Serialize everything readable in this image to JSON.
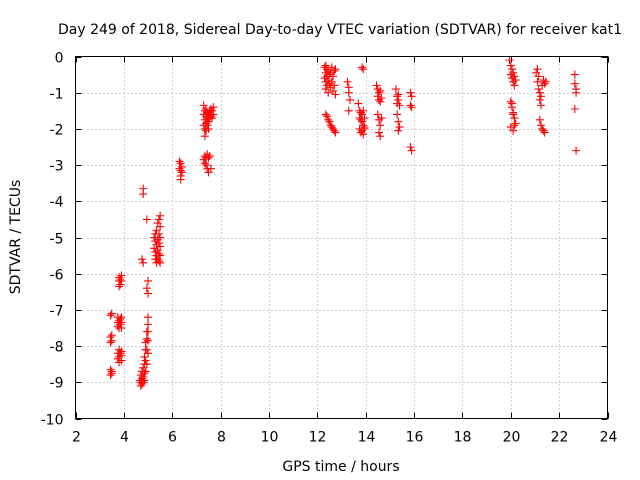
{
  "chart_data": {
    "type": "scatter",
    "title": "Day 249 of 2018, Sidereal Day-to-day VTEC variation (SDTVAR) for receiver kat1",
    "xlabel": "GPS time / hours",
    "ylabel": "SDTVAR / TECUs",
    "xlim": [
      2,
      24
    ],
    "ylim": [
      -10,
      0
    ],
    "xticks": [
      2,
      4,
      6,
      8,
      10,
      12,
      14,
      16,
      18,
      20,
      22,
      24
    ],
    "yticks": [
      0,
      -1,
      -2,
      -3,
      -4,
      -5,
      -6,
      -7,
      -8,
      -9,
      -10
    ],
    "grid": true,
    "marker": "+",
    "point_color": "#ff0000",
    "series": [
      {
        "name": "kat1",
        "x": [
          3.45,
          3.45,
          3.45,
          3.45,
          3.45,
          3.5,
          3.5,
          3.5,
          3.5,
          3.5,
          3.75,
          3.75,
          3.75,
          3.75,
          3.75,
          3.8,
          3.8,
          3.8,
          3.8,
          3.8,
          3.8,
          3.8,
          3.8,
          3.85,
          3.85,
          3.85,
          3.85,
          3.85,
          3.9,
          3.9,
          3.9,
          3.9,
          3.9,
          3.9,
          3.9,
          3.9,
          4.65,
          4.7,
          4.7,
          4.7,
          4.75,
          4.75,
          4.75,
          4.8,
          4.8,
          4.8,
          4.85,
          4.85,
          4.85,
          4.85,
          4.9,
          4.9,
          4.9,
          4.9,
          4.95,
          4.95,
          4.95,
          4.95,
          5.0,
          5.0,
          5.0,
          5.0,
          5.0,
          4.75,
          4.8,
          4.8,
          4.8,
          4.95,
          4.95,
          5.0,
          5.0,
          5.25,
          5.25,
          5.3,
          5.3,
          5.3,
          5.3,
          5.35,
          5.35,
          5.35,
          5.35,
          5.4,
          5.4,
          5.4,
          5.4,
          5.45,
          5.45,
          5.45,
          5.45,
          5.45,
          5.5,
          5.5,
          5.5,
          5.5,
          5.5,
          5.5,
          6.3,
          6.3,
          6.35,
          6.35,
          6.35,
          6.35,
          6.4,
          6.4,
          7.3,
          7.3,
          7.3,
          7.35,
          7.35,
          7.35,
          7.35,
          7.4,
          7.4,
          7.4,
          7.4,
          7.45,
          7.45,
          7.45,
          7.5,
          7.5,
          7.5,
          7.55,
          7.55,
          7.6,
          7.6,
          7.65,
          7.65,
          7.7,
          7.7,
          7.3,
          7.35,
          7.35,
          7.4,
          7.4,
          7.45,
          7.45,
          7.5,
          7.5,
          7.55,
          7.6,
          12.3,
          12.3,
          12.35,
          12.35,
          12.35,
          12.35,
          12.4,
          12.4,
          12.4,
          12.45,
          12.45,
          12.45,
          12.5,
          12.5,
          12.55,
          12.55,
          12.6,
          12.6,
          12.65,
          12.65,
          12.7,
          12.7,
          12.75,
          12.75,
          12.35,
          12.4,
          12.45,
          12.5,
          12.55,
          12.6,
          12.65,
          12.7,
          12.75,
          13.25,
          13.3,
          13.3,
          13.35,
          13.3,
          13.7,
          13.75,
          13.75,
          13.8,
          13.8,
          13.85,
          13.85,
          13.9,
          13.9,
          13.95,
          13.95,
          13.75,
          13.8,
          13.85,
          13.9,
          13.95,
          13.85,
          13.9,
          14.45,
          14.5,
          14.5,
          14.55,
          14.55,
          14.6,
          14.6,
          14.65,
          14.5,
          14.55,
          14.6,
          14.65,
          14.55,
          14.6,
          15.25,
          15.3,
          15.3,
          15.35,
          15.35,
          15.4,
          15.3,
          15.35,
          15.4,
          15.35,
          15.85,
          15.85,
          15.9,
          15.9,
          15.85,
          15.9,
          19.95,
          20.0,
          20.0,
          20.05,
          20.05,
          20.1,
          20.1,
          20.15,
          20.15,
          20.2,
          20.0,
          20.05,
          20.1,
          20.15,
          20.2,
          20.05,
          20.1,
          20.15,
          20.0,
          20.1,
          21.05,
          21.1,
          21.1,
          21.15,
          21.15,
          21.2,
          21.2,
          21.25,
          21.25,
          21.3,
          21.35,
          21.4,
          21.45,
          21.2,
          21.25,
          21.3,
          21.35,
          21.4,
          22.65,
          22.65,
          22.7,
          22.7,
          22.65,
          22.7
        ],
        "y": [
          -7.15,
          -7.75,
          -7.9,
          -8.65,
          -8.8,
          -7.1,
          -7.7,
          -7.85,
          -8.7,
          -8.75,
          -7.2,
          -7.35,
          -7.45,
          -8.2,
          -8.35,
          -6.2,
          -6.35,
          -7.3,
          -7.5,
          -8.1,
          -8.3,
          -8.45,
          -6.1,
          -6.15,
          -6.3,
          -7.25,
          -7.4,
          -8.2,
          -6.05,
          -6.2,
          -7.2,
          -7.35,
          -7.5,
          -8.15,
          -8.25,
          -8.4,
          -8.95,
          -8.8,
          -9.0,
          -9.1,
          -8.7,
          -8.9,
          -9.05,
          -8.6,
          -8.85,
          -9.0,
          -8.3,
          -8.5,
          -8.75,
          -8.95,
          -7.9,
          -8.1,
          -8.4,
          -8.7,
          -7.6,
          -7.8,
          -8.1,
          -8.5,
          -7.2,
          -7.4,
          -7.6,
          -7.85,
          -8.2,
          -5.6,
          -5.7,
          -3.65,
          -3.8,
          -4.5,
          -6.4,
          -6.2,
          -6.55,
          -5.0,
          -5.3,
          -4.9,
          -5.1,
          -5.4,
          -5.6,
          -4.8,
          -5.2,
          -5.5,
          -5.7,
          -4.6,
          -5.05,
          -5.35,
          -5.6,
          -4.5,
          -4.9,
          -5.15,
          -5.45,
          -5.65,
          -4.4,
          -4.7,
          -5.0,
          -5.25,
          -5.5,
          -5.7,
          -2.9,
          -3.1,
          -2.95,
          -3.15,
          -3.3,
          -3.4,
          -3.05,
          -3.2,
          -1.35,
          -1.6,
          -1.9,
          -1.5,
          -1.75,
          -2.0,
          -2.2,
          -1.45,
          -1.65,
          -1.85,
          -2.05,
          -1.55,
          -1.7,
          -1.9,
          -1.6,
          -1.8,
          -2.0,
          -1.5,
          -1.7,
          -1.45,
          -1.65,
          -1.5,
          -1.7,
          -1.4,
          -1.6,
          -2.85,
          -2.75,
          -2.95,
          -2.8,
          -3.0,
          -2.7,
          -3.1,
          -2.8,
          -3.2,
          -2.75,
          -3.1,
          -0.3,
          -0.6,
          -0.25,
          -0.45,
          -0.7,
          -0.9,
          -0.35,
          -0.55,
          -0.8,
          -0.4,
          -0.65,
          -1.0,
          -0.5,
          -0.75,
          -0.45,
          -0.85,
          -0.3,
          -0.7,
          -0.55,
          -0.95,
          -0.4,
          -0.8,
          -0.35,
          -1.05,
          -1.6,
          -1.65,
          -1.75,
          -1.8,
          -1.9,
          -1.95,
          -2.0,
          -2.05,
          -2.1,
          -0.7,
          -0.85,
          -1.0,
          -1.2,
          -1.5,
          -1.3,
          -1.5,
          -1.7,
          -1.55,
          -1.75,
          -1.6,
          -1.8,
          -1.5,
          -1.9,
          -1.7,
          -1.95,
          -2.0,
          -2.1,
          -2.05,
          -2.15,
          -2.0,
          -0.3,
          -0.35,
          -0.8,
          -0.9,
          -1.1,
          -1.0,
          -1.2,
          -0.95,
          -1.25,
          -1.15,
          -1.6,
          -1.75,
          -1.9,
          -1.7,
          -2.1,
          -2.2,
          -0.9,
          -1.1,
          -1.3,
          -1.05,
          -1.2,
          -1.35,
          -1.6,
          -1.8,
          -1.95,
          -2.05,
          -1.0,
          -1.35,
          -1.1,
          -1.4,
          -2.5,
          -2.6,
          -0.1,
          -0.25,
          -0.5,
          -0.35,
          -0.6,
          -0.45,
          -0.7,
          -0.55,
          -0.8,
          -0.65,
          -1.25,
          -1.4,
          -1.55,
          -1.7,
          -1.85,
          -1.3,
          -1.6,
          -1.9,
          -1.95,
          -2.05,
          -0.45,
          -0.35,
          -0.7,
          -0.55,
          -0.9,
          -1.0,
          -1.2,
          -1.1,
          -1.35,
          -0.8,
          -0.65,
          -0.75,
          -0.7,
          -1.75,
          -1.9,
          -2.0,
          -2.05,
          -2.1,
          -0.5,
          -0.75,
          -0.9,
          -1.0,
          -1.45,
          -2.6
        ]
      }
    ]
  }
}
